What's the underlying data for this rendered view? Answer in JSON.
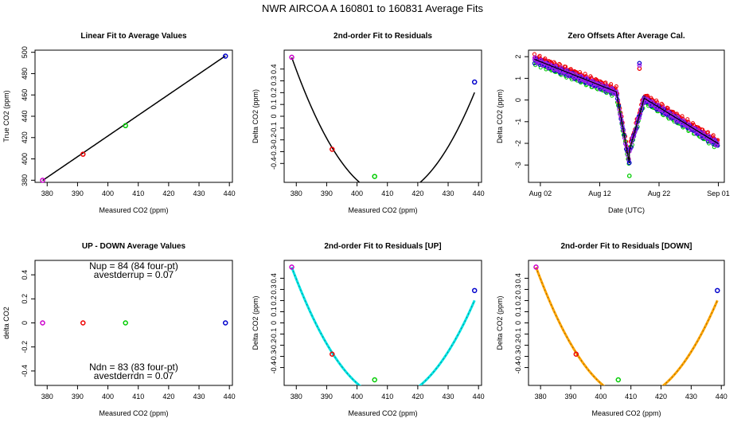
{
  "figure_title": "NWR   AIRCOA A   160801 to 160831   Average Fits",
  "colors": {
    "magenta": "#cc00cc",
    "red": "#ee0000",
    "green": "#00cc00",
    "blue": "#0000cc",
    "black": "#000000",
    "cyan": "#00e5e5",
    "orange": "#ffa500",
    "purple": "#a020f0"
  },
  "chart_data": [
    {
      "id": "p1",
      "type": "scatter",
      "title": "Linear Fit to Average Values",
      "xlabel": "Measured CO2 (ppm)",
      "ylabel": "True CO2 (ppm)",
      "xlim": [
        376,
        441
      ],
      "ylim": [
        378,
        502
      ],
      "xticks": [
        380,
        390,
        400,
        410,
        420,
        430,
        440
      ],
      "yticks": [
        380,
        400,
        420,
        440,
        460,
        480,
        500
      ],
      "x": [
        378.5,
        391.8,
        405.8,
        438.7
      ],
      "y": [
        380.0,
        404.4,
        431.2,
        496.4
      ],
      "point_colors": [
        "magenta",
        "red",
        "green",
        "blue"
      ],
      "fit": {
        "kind": "linear",
        "slope": 1.942,
        "intercept": -355.3,
        "x0": 378.5,
        "x1": 438.7
      },
      "fit_color": "black"
    },
    {
      "id": "p2",
      "type": "scatter",
      "title": "2nd-order Fit to Residuals",
      "xlabel": "Measured CO2 (ppm)",
      "ylabel": "Delta CO2 (ppm)",
      "xlim": [
        376,
        441
      ],
      "ylim": [
        -0.56,
        0.56
      ],
      "xticks": [
        380,
        390,
        400,
        410,
        420,
        430,
        440
      ],
      "yticks": [
        -0.4,
        -0.3,
        -0.2,
        -0.1,
        0.0,
        0.1,
        0.2,
        0.3,
        0.4
      ],
      "x": [
        378.5,
        391.8,
        405.8,
        438.7
      ],
      "y": [
        0.5,
        -0.28,
        -0.51,
        0.29
      ],
      "point_colors": [
        "magenta",
        "red",
        "green",
        "blue"
      ],
      "fit": {
        "kind": "quadratic",
        "vertex_x": 410.8,
        "vertex_y": -0.672,
        "a": 0.001122,
        "x0": 378.5,
        "x1": 438.7
      },
      "fit_color": "black"
    },
    {
      "id": "p3",
      "type": "line",
      "title": "Zero Offsets After Average Cal.",
      "xlabel": "Date (UTC)",
      "ylabel": "Delta CO2 (ppm)",
      "xlim": [
        -1,
        32
      ],
      "ylim": [
        -3.8,
        2.3
      ],
      "xticks": [
        1,
        11,
        21,
        31
      ],
      "xtick_labels": [
        "Aug 02",
        "Aug 12",
        "Aug 22",
        "Sep 01"
      ],
      "yticks": [
        -3,
        -2,
        -1,
        0,
        1,
        2
      ],
      "series": [
        {
          "name": "magenta",
          "dy": 0.0
        },
        {
          "name": "red",
          "dy": 0.1
        },
        {
          "name": "green",
          "dy": -0.15
        },
        {
          "name": "blue",
          "dy": -0.08
        },
        {
          "name": "purple",
          "dy": -0.05
        },
        {
          "name": "black",
          "dy": -0.02
        }
      ],
      "trend": {
        "segments": [
          {
            "t0": 0,
            "t1": 13.8,
            "v0": 1.9,
            "v1": 0.4
          },
          {
            "t0": 13.8,
            "t1": 16.0,
            "v0": 0.4,
            "v1": -2.9
          },
          {
            "t0": 16.0,
            "t1": 18.5,
            "v0": -2.3,
            "v1": 0.1
          },
          {
            "t0": 18.5,
            "t1": 31.0,
            "v0": 0.1,
            "v1": -2.0
          }
        ]
      },
      "outliers": [
        {
          "t": 16.0,
          "v": -3.5,
          "color": "green"
        },
        {
          "t": 16.0,
          "v": -2.9,
          "color": "blue"
        },
        {
          "t": 17.7,
          "v": 1.7,
          "color": "blue"
        },
        {
          "t": 17.7,
          "v": 1.45,
          "color": "red"
        },
        {
          "t": 17.7,
          "v": 1.6,
          "color": "purple"
        }
      ]
    },
    {
      "id": "p4",
      "type": "scatter",
      "title": "UP - DOWN Average Values",
      "xlabel": "Measured CO2 (ppm)",
      "ylabel": "delta CO2",
      "xlim": [
        376,
        441
      ],
      "ylim": [
        -0.52,
        0.52
      ],
      "xticks": [
        380,
        390,
        400,
        410,
        420,
        430,
        440
      ],
      "yticks": [
        -0.4,
        -0.2,
        0.0,
        0.2,
        0.4
      ],
      "x": [
        378.5,
        391.8,
        405.8,
        438.7
      ],
      "y": [
        0.0,
        0.0,
        0.0,
        0.0
      ],
      "point_colors": [
        "magenta",
        "red",
        "green",
        "blue"
      ],
      "annotations": {
        "top": [
          "Nup = 84 (84 four-pt)",
          "avestderrup =  0.07"
        ],
        "bottom": [
          "Ndn = 83 (83 four-pt)",
          "avestderrdn =  0.07"
        ]
      }
    },
    {
      "id": "p5",
      "type": "scatter",
      "title": "2nd-order Fit to Residuals [UP]",
      "xlabel": "Measured CO2 (ppm)",
      "ylabel": "Delta CO2 (ppm)",
      "xlim": [
        376,
        441
      ],
      "ylim": [
        -0.56,
        0.56
      ],
      "xticks": [
        380,
        390,
        400,
        410,
        420,
        430,
        440
      ],
      "yticks": [
        -0.4,
        -0.3,
        -0.2,
        -0.1,
        0.0,
        0.1,
        0.2,
        0.3,
        0.4
      ],
      "x": [
        378.5,
        391.8,
        405.8,
        438.7
      ],
      "y": [
        0.5,
        -0.28,
        -0.51,
        0.29
      ],
      "point_colors": [
        "magenta",
        "red",
        "green",
        "blue"
      ],
      "fit": {
        "kind": "quadratic",
        "vertex_x": 410.8,
        "vertex_y": -0.672,
        "a": 0.001122,
        "x0": 378.5,
        "x1": 438.7
      },
      "fit_color": "cyan"
    },
    {
      "id": "p6",
      "type": "scatter",
      "title": "2nd-order Fit to Residuals [DOWN]",
      "xlabel": "Measured CO2 (ppm)",
      "ylabel": "Delta CO2 (ppm)",
      "xlim": [
        376,
        441
      ],
      "ylim": [
        -0.56,
        0.56
      ],
      "xticks": [
        380,
        390,
        400,
        410,
        420,
        430,
        440
      ],
      "yticks": [
        -0.4,
        -0.3,
        -0.2,
        -0.1,
        0.0,
        0.1,
        0.2,
        0.3,
        0.4
      ],
      "x": [
        378.5,
        391.8,
        405.8,
        438.7
      ],
      "y": [
        0.5,
        -0.28,
        -0.51,
        0.29
      ],
      "point_colors": [
        "magenta",
        "red",
        "green",
        "blue"
      ],
      "fit": {
        "kind": "quadratic",
        "vertex_x": 410.8,
        "vertex_y": -0.672,
        "a": 0.001122,
        "x0": 378.5,
        "x1": 438.7
      },
      "fit_color": "orange"
    }
  ]
}
